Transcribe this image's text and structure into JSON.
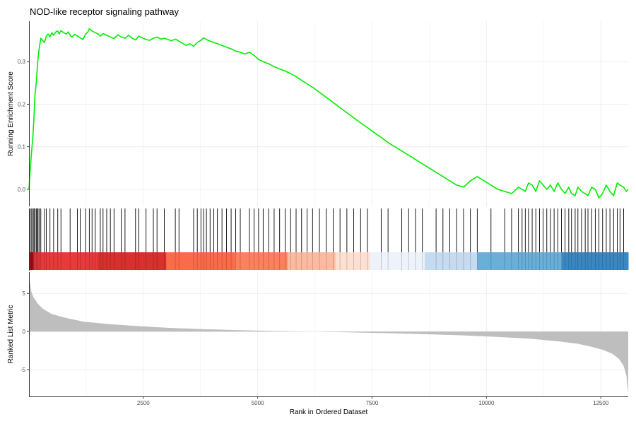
{
  "chart_data": [
    {
      "type": "line",
      "panel": "running-enrichment",
      "title": "NOD-like receptor signaling pathway",
      "ylabel": "Running Enrichment Score",
      "xlabel": "",
      "xlim": [
        1,
        13100
      ],
      "ylim": [
        -0.04,
        0.395
      ],
      "yticks": [
        0.0,
        0.1,
        0.2,
        0.3
      ],
      "ytick_labels": [
        "0.0",
        "0.1",
        "0.2",
        "0.3"
      ],
      "grid": true,
      "series": [
        {
          "color": "#00ee00",
          "x": [
            1,
            30,
            60,
            90,
            110,
            130,
            160,
            180,
            200,
            230,
            260,
            300,
            340,
            380,
            420,
            460,
            500,
            540,
            590,
            630,
            660,
            700,
            760,
            820,
            860,
            900,
            940,
            1000,
            1060,
            1120,
            1180,
            1240,
            1290,
            1320,
            1380,
            1450,
            1510,
            1560,
            1620,
            1700,
            1780,
            1860,
            1940,
            2020,
            2100,
            2180,
            2260,
            2330,
            2400,
            2480,
            2560,
            2640,
            2720,
            2800,
            2880,
            2960,
            3040,
            3120,
            3200,
            3280,
            3360,
            3440,
            3520,
            3600,
            3680,
            3760,
            3820,
            3880,
            3960,
            4040,
            4120,
            4220,
            4320,
            4420,
            4520,
            4620,
            4720,
            4820,
            4920,
            5020,
            5120,
            5240,
            5360,
            5480,
            5600,
            5720,
            5840,
            5960,
            6080,
            6200,
            6350,
            6500,
            6650,
            6800,
            6950,
            7100,
            7250,
            7400,
            7550,
            7700,
            7850,
            8000,
            8150,
            8300,
            8450,
            8600,
            8750,
            8900,
            9050,
            9200,
            9350,
            9500,
            9650,
            9800,
            9950,
            10100,
            10250,
            10400,
            10550,
            10700,
            10780,
            10850,
            10920,
            11000,
            11080,
            11160,
            11240,
            11320,
            11400,
            11480,
            11560,
            11640,
            11720,
            11800,
            11860,
            11940,
            12000,
            12080,
            12160,
            12220,
            12300,
            12380,
            12460,
            12540,
            12620,
            12700,
            12780,
            12860,
            12920,
            13000,
            13060,
            13100
          ],
          "y": [
            0.0,
            0.05,
            0.09,
            0.13,
            0.17,
            0.22,
            0.25,
            0.28,
            0.31,
            0.335,
            0.355,
            0.35,
            0.345,
            0.36,
            0.365,
            0.358,
            0.368,
            0.362,
            0.37,
            0.372,
            0.365,
            0.373,
            0.368,
            0.365,
            0.37,
            0.362,
            0.358,
            0.364,
            0.36,
            0.356,
            0.352,
            0.365,
            0.37,
            0.377,
            0.372,
            0.368,
            0.365,
            0.36,
            0.366,
            0.362,
            0.358,
            0.354,
            0.363,
            0.358,
            0.355,
            0.362,
            0.355,
            0.351,
            0.36,
            0.356,
            0.352,
            0.35,
            0.355,
            0.358,
            0.353,
            0.355,
            0.352,
            0.349,
            0.353,
            0.348,
            0.343,
            0.338,
            0.342,
            0.336,
            0.345,
            0.35,
            0.356,
            0.352,
            0.348,
            0.345,
            0.342,
            0.338,
            0.334,
            0.33,
            0.325,
            0.322,
            0.318,
            0.322,
            0.315,
            0.305,
            0.3,
            0.295,
            0.288,
            0.283,
            0.278,
            0.272,
            0.265,
            0.256,
            0.248,
            0.24,
            0.228,
            0.216,
            0.204,
            0.192,
            0.18,
            0.168,
            0.156,
            0.145,
            0.133,
            0.122,
            0.11,
            0.1,
            0.09,
            0.08,
            0.07,
            0.06,
            0.05,
            0.04,
            0.03,
            0.02,
            0.01,
            0.005,
            0.02,
            0.03,
            0.02,
            0.01,
            0.0,
            -0.005,
            -0.01,
            0.005,
            0.0,
            -0.005,
            0.015,
            0.01,
            -0.005,
            0.02,
            0.01,
            0.0,
            0.01,
            -0.005,
            0.015,
            0.0,
            -0.01,
            0.005,
            -0.01,
            -0.015,
            0.005,
            -0.005,
            -0.01,
            -0.015,
            0.005,
            0.0,
            -0.02,
            -0.01,
            0.01,
            -0.005,
            -0.015,
            0.015,
            0.01,
            0.005,
            -0.005,
            0.0
          ]
        }
      ]
    },
    {
      "type": "heatmap",
      "panel": "gene-hits-and-rank-colorbar",
      "xlim": [
        1,
        13100
      ],
      "hit_ranks": [
        30,
        60,
        90,
        110,
        130,
        160,
        180,
        200,
        230,
        260,
        340,
        380,
        460,
        540,
        630,
        700,
        900,
        1060,
        1120,
        1240,
        1320,
        1380,
        1450,
        1560,
        1620,
        1700,
        1780,
        1860,
        2020,
        2100,
        2330,
        2400,
        2560,
        2720,
        2800,
        2960,
        3200,
        3280,
        3600,
        3680,
        3760,
        3820,
        3880,
        3960,
        4040,
        4120,
        4220,
        4320,
        4420,
        4520,
        4620,
        4820,
        4920,
        5020,
        5120,
        5240,
        5360,
        5480,
        5600,
        5720,
        5840,
        5960,
        6080,
        6200,
        6350,
        6500,
        6650,
        6800,
        6950,
        7100,
        7250,
        7400,
        7700,
        7850,
        8150,
        8300,
        8450,
        8600,
        8900,
        9050,
        9200,
        9350,
        9500,
        9650,
        9800,
        10100,
        10400,
        10550,
        10700,
        10780,
        10850,
        10920,
        11000,
        11080,
        11160,
        11240,
        11320,
        11400,
        11480,
        11560,
        11640,
        11720,
        11800,
        11860,
        11940,
        12000,
        12080,
        12160,
        12220,
        12300,
        12380,
        12460,
        12540,
        12620,
        12700,
        12780,
        12860,
        12920,
        13000
      ],
      "color_bins": [
        {
          "from": 1,
          "to": 100,
          "color": "#a50f15"
        },
        {
          "from": 100,
          "to": 1500,
          "color": "#e8393b"
        },
        {
          "from": 1500,
          "to": 3000,
          "color": "#d7302f"
        },
        {
          "from": 3000,
          "to": 4500,
          "color": "#fb6a4a"
        },
        {
          "from": 4500,
          "to": 5650,
          "color": "#fc7f5f"
        },
        {
          "from": 5650,
          "to": 6700,
          "color": "#fcbba1"
        },
        {
          "from": 6700,
          "to": 7450,
          "color": "#fee0d2"
        },
        {
          "from": 7450,
          "to": 8650,
          "color": "#eef2fa"
        },
        {
          "from": 8650,
          "to": 9800,
          "color": "#c6dbef"
        },
        {
          "from": 9800,
          "to": 11650,
          "color": "#6baed6"
        },
        {
          "from": 11650,
          "to": 13100,
          "color": "#3a87c2"
        }
      ]
    },
    {
      "type": "area",
      "panel": "ranked-list-metric",
      "ylabel": "Ranked List Metric",
      "xlabel": "Rank in Ordered Dataset",
      "xlim": [
        1,
        13100
      ],
      "ylim": [
        -8.5,
        7.8
      ],
      "yticks": [
        -5,
        0,
        5
      ],
      "ytick_labels": [
        "-5",
        "0",
        "5"
      ],
      "xticks": [
        2500,
        5000,
        7500,
        10000,
        12500
      ],
      "xtick_labels": [
        "2500",
        "5000",
        "7500",
        "10000",
        "12500"
      ],
      "grid": true,
      "series": [
        {
          "color": "#bebebe",
          "x": [
            1,
            50,
            100,
            200,
            300,
            500,
            800,
            1200,
            1700,
            2300,
            3000,
            3800,
            4600,
            5400,
            6200,
            7000,
            7800,
            8600,
            9400,
            10200,
            11000,
            11600,
            12000,
            12300,
            12550,
            12750,
            12900,
            13000,
            13060,
            13100
          ],
          "y": [
            7.5,
            5.3,
            4.5,
            3.6,
            3.0,
            2.3,
            1.8,
            1.3,
            1.0,
            0.75,
            0.5,
            0.32,
            0.18,
            0.08,
            0.0,
            -0.1,
            -0.2,
            -0.32,
            -0.48,
            -0.68,
            -0.95,
            -1.3,
            -1.6,
            -2.0,
            -2.4,
            -2.9,
            -3.6,
            -4.5,
            -5.8,
            -8.2
          ]
        }
      ]
    }
  ]
}
